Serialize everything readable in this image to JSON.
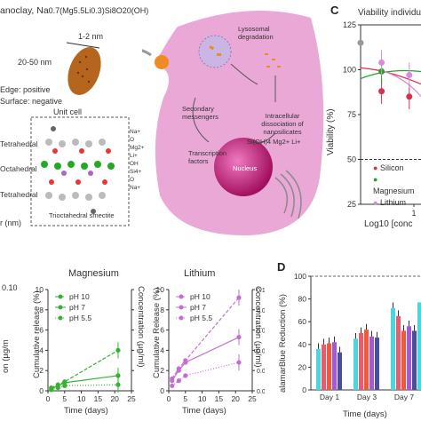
{
  "panelA": {
    "title_prefix": "anoclay, Na",
    "title_formula": "0.7(Mg5.5Li0.3)Si8O20(OH)",
    "size_lateral": "1-2 nm",
    "size_diameter": "20-50 nm",
    "edge": "Edge: positive",
    "surface": "Surface: negative",
    "unit_cell": "Unit cell",
    "layers": [
      "Tetrahedral",
      "Octahedral",
      "Tetrahedral"
    ],
    "legend": [
      "Na+",
      "O",
      "Mg2+",
      "Li+",
      "OH",
      "Si4+",
      "O",
      "Na+"
    ],
    "caption": "Trioctahedral smectite",
    "axis_fragment": "r (nm)",
    "colors": {
      "particle": "#b5651d",
      "layer_box": "#555555"
    }
  },
  "panelB": {
    "lysosome": "Lysosomal degradation",
    "secondary": "Secondary messengers",
    "dissociation": "Intracellular dissociation of nanosilicates",
    "ions": "Si(OH)4 Mg2+ Li+",
    "tf": "Transcription factors",
    "nucleus": "Nucleus",
    "colors": {
      "cell": "#e9a8d6",
      "nucleus": "#c2187a",
      "particle": "#f08a24"
    }
  },
  "panelC": {
    "label": "C",
    "title": "Viability individua",
    "ylabel": "Viability (%)",
    "xlabel": "Log10 [conc",
    "legend": [
      "Silicon",
      "Magnesium",
      "Lithium"
    ],
    "legend_colors": [
      "#d6324f",
      "#2aa02a",
      "#d78bd8"
    ],
    "chart_data": {
      "type": "scatter",
      "ylim": [
        25,
        125
      ],
      "yticks": [
        25,
        50,
        75,
        100,
        125
      ],
      "xticks_visible": [
        "1"
      ],
      "series": [
        {
          "name": "Silicon",
          "x": [
            0.3,
            0.9
          ],
          "y": [
            88,
            85
          ]
        },
        {
          "name": "Magnesium",
          "x": [
            0.3
          ],
          "y": [
            99
          ]
        },
        {
          "name": "Lithium",
          "x": [
            0.3,
            0.9
          ],
          "y": [
            104,
            97
          ]
        }
      ],
      "extra_points": [
        {
          "x": 0.0,
          "y": 115
        }
      ],
      "reference_line": 50
    }
  },
  "panelMg": {
    "title": "Magnesium",
    "ylabel_left_fragment": "on (µg/m",
    "ylabel_left_tick": "0.10",
    "ylabel": "Cumulative release (%)",
    "ylabel_right": "Concentration (µg/ml)",
    "xlabel": "Time (days)",
    "yticks": [
      "0",
      "2",
      "4",
      "6",
      "8",
      "10"
    ],
    "xticks": [
      "0",
      "5",
      "10",
      "15",
      "20",
      "25"
    ],
    "legend": [
      "pH 10",
      "pH 7",
      "pH 5.5"
    ],
    "chart_data": {
      "type": "line",
      "xlim": [
        0,
        25
      ],
      "ylim": [
        0,
        10
      ],
      "series": [
        {
          "name": "pH 10",
          "x": [
            1,
            3,
            5,
            21
          ],
          "y": [
            0.3,
            0.6,
            0.9,
            4.0
          ]
        },
        {
          "name": "pH 7",
          "x": [
            1,
            3,
            5,
            21
          ],
          "y": [
            0.2,
            0.5,
            0.8,
            1.5
          ]
        },
        {
          "name": "pH 5.5",
          "x": [
            1,
            3,
            5,
            21
          ],
          "y": [
            0.1,
            0.3,
            0.5,
            0.6
          ]
        }
      ]
    }
  },
  "panelLi": {
    "title": "Lithium",
    "ylabel": "Cumulative Release (%)",
    "ylabel_right": "Concentration (µg/ml)",
    "xlabel": "Time (days)",
    "yticks": [
      "0",
      "2",
      "4",
      "6",
      "8",
      "10"
    ],
    "yticks_right": [
      "0.00",
      "0.02",
      "0.04",
      "0.06",
      "0.08",
      "0.10"
    ],
    "xticks": [
      "0",
      "5",
      "10",
      "15",
      "20",
      "25"
    ],
    "legend": [
      "pH 10",
      "pH 7",
      "pH 5.5"
    ],
    "chart_data": {
      "type": "line",
      "xlim": [
        0,
        25
      ],
      "ylim": [
        0,
        10
      ],
      "series": [
        {
          "name": "pH 10",
          "x": [
            1,
            3,
            5,
            21
          ],
          "y": [
            1.2,
            2.2,
            3.0,
            9.2
          ]
        },
        {
          "name": "pH 7",
          "x": [
            1,
            3,
            5,
            21
          ],
          "y": [
            1.0,
            2.0,
            2.8,
            5.3
          ]
        },
        {
          "name": "pH 5.5",
          "x": [
            1,
            3,
            5,
            21
          ],
          "y": [
            0.5,
            1.0,
            1.5,
            2.8
          ]
        }
      ]
    }
  },
  "panelD": {
    "label": "D",
    "ylabel": "alamarBlue Reduction (%)",
    "xlabel": "Time (days)",
    "yticks": [
      "0",
      "20",
      "40",
      "60",
      "80",
      "100"
    ],
    "categories": [
      "Day 1",
      "Day 3",
      "Day 7"
    ],
    "colors": [
      "#49d6de",
      "#ea5b6d",
      "#ef5a3f",
      "#a25bd4",
      "#4a4f9c",
      "#31d5a8",
      "#3a5fc6"
    ],
    "chart_data": {
      "type": "bar",
      "ylim": [
        0,
        100
      ],
      "categories": [
        "Day 1",
        "Day 3",
        "Day 7"
      ],
      "series": [
        {
          "values": [
            36,
            45,
            72
          ]
        },
        {
          "values": [
            40,
            50,
            65
          ]
        },
        {
          "values": [
            41,
            53,
            52
          ]
        },
        {
          "values": [
            42,
            47,
            56
          ]
        },
        {
          "values": [
            33,
            46,
            52
          ]
        }
      ],
      "extra": [
        {
          "category": "Day 7",
          "values": [
            77
          ]
        }
      ]
    }
  }
}
